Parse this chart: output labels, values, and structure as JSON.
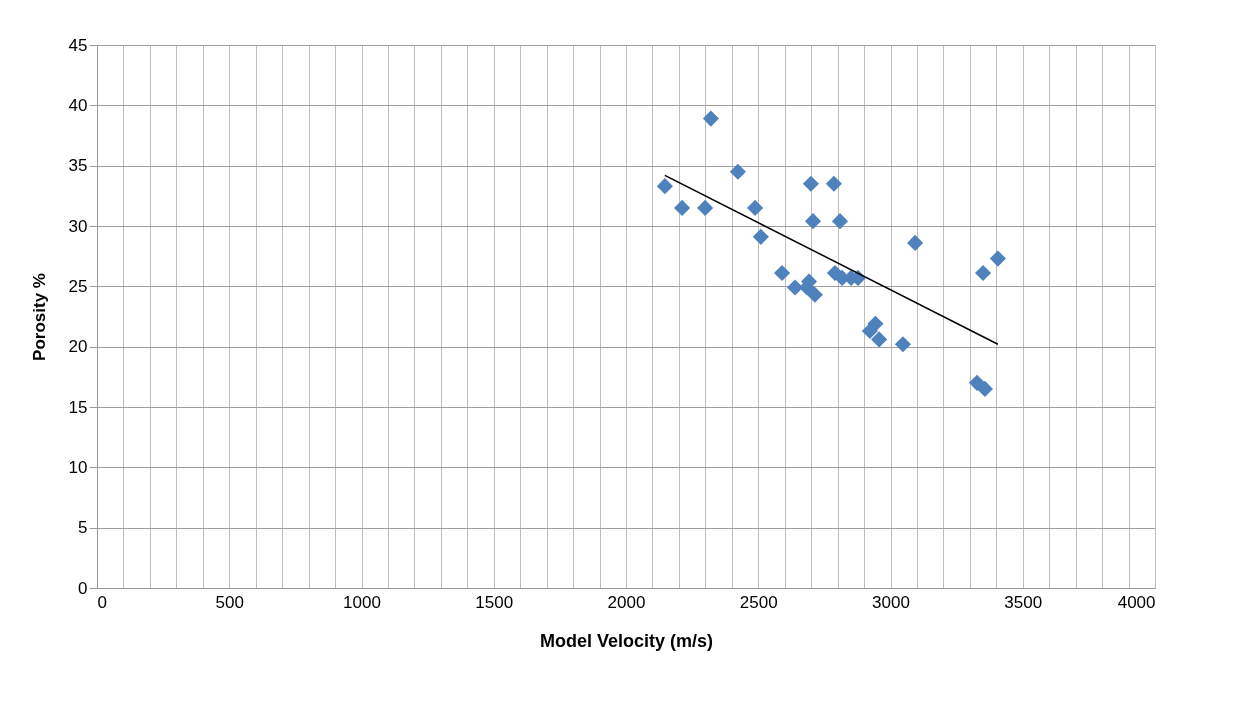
{
  "chart_data": {
    "type": "scatter",
    "xlabel": "Model Velocity (m/s)",
    "ylabel": "Porosity %",
    "marker": "diamond",
    "grid": true,
    "xlim": [
      0,
      4000
    ],
    "ylim": [
      0,
      45
    ],
    "xticks": [
      0,
      {
        "value": 100,
        "label": null
      },
      {
        "value": 200,
        "label": null
      },
      {
        "value": 300,
        "label": null
      },
      {
        "value": 400,
        "label": null
      },
      500,
      {
        "value": 600,
        "label": null
      },
      {
        "value": 700,
        "label": null
      },
      {
        "value": 800,
        "label": null
      },
      {
        "value": 900,
        "label": null
      },
      1000,
      {
        "value": 1100,
        "label": null
      },
      {
        "value": 1200,
        "label": null
      },
      {
        "value": 1300,
        "label": null
      },
      {
        "value": 1400,
        "label": null
      },
      1500,
      {
        "value": 1600,
        "label": null
      },
      {
        "value": 1700,
        "label": null
      },
      {
        "value": 1800,
        "label": null
      },
      {
        "value": 1900,
        "label": null
      },
      2000,
      {
        "value": 2100,
        "label": null
      },
      {
        "value": 2200,
        "label": null
      },
      {
        "value": 2300,
        "label": null
      },
      {
        "value": 2400,
        "label": null
      },
      2500,
      {
        "value": 2600,
        "label": null
      },
      {
        "value": 2700,
        "label": null
      },
      {
        "value": 2800,
        "label": null
      },
      {
        "value": 2900,
        "label": null
      },
      3000,
      {
        "value": 3100,
        "label": null
      },
      {
        "value": 3200,
        "label": null
      },
      {
        "value": 3300,
        "label": null
      },
      {
        "value": 3400,
        "label": null
      },
      3500,
      {
        "value": 3600,
        "label": null
      },
      {
        "value": 3700,
        "label": null
      },
      {
        "value": 3800,
        "label": null
      },
      {
        "value": 3900,
        "label": null
      },
      4000
    ],
    "yticks": [
      0,
      5,
      10,
      15,
      20,
      25,
      30,
      35,
      40,
      45
    ],
    "series": [
      {
        "type": "scatter",
        "color": "#4f81bd",
        "x": [
          2147,
          2212,
          2299,
          2321,
          2423,
          2488,
          2510,
          2590,
          2639,
          2692,
          2684,
          2714,
          2699,
          2707,
          2786,
          2809,
          2790,
          2817,
          2851,
          2877,
          2943,
          2922,
          2957,
          3047,
          3093,
          3350,
          3406,
          3327,
          3357
        ],
        "values": [
          33.3,
          31.5,
          31.5,
          38.9,
          34.5,
          31.5,
          29.1,
          26.1,
          24.9,
          25.4,
          24.9,
          24.3,
          33.5,
          30.4,
          33.5,
          30.4,
          26.1,
          25.7,
          25.7,
          25.7,
          21.9,
          21.3,
          20.6,
          20.2,
          28.6,
          26.1,
          27.3,
          17.0,
          16.5
        ]
      },
      {
        "type": "line",
        "color": "#000000",
        "marker": "none",
        "x": [
          2147,
          3406
        ],
        "values": [
          34.2,
          20.2
        ]
      }
    ]
  }
}
